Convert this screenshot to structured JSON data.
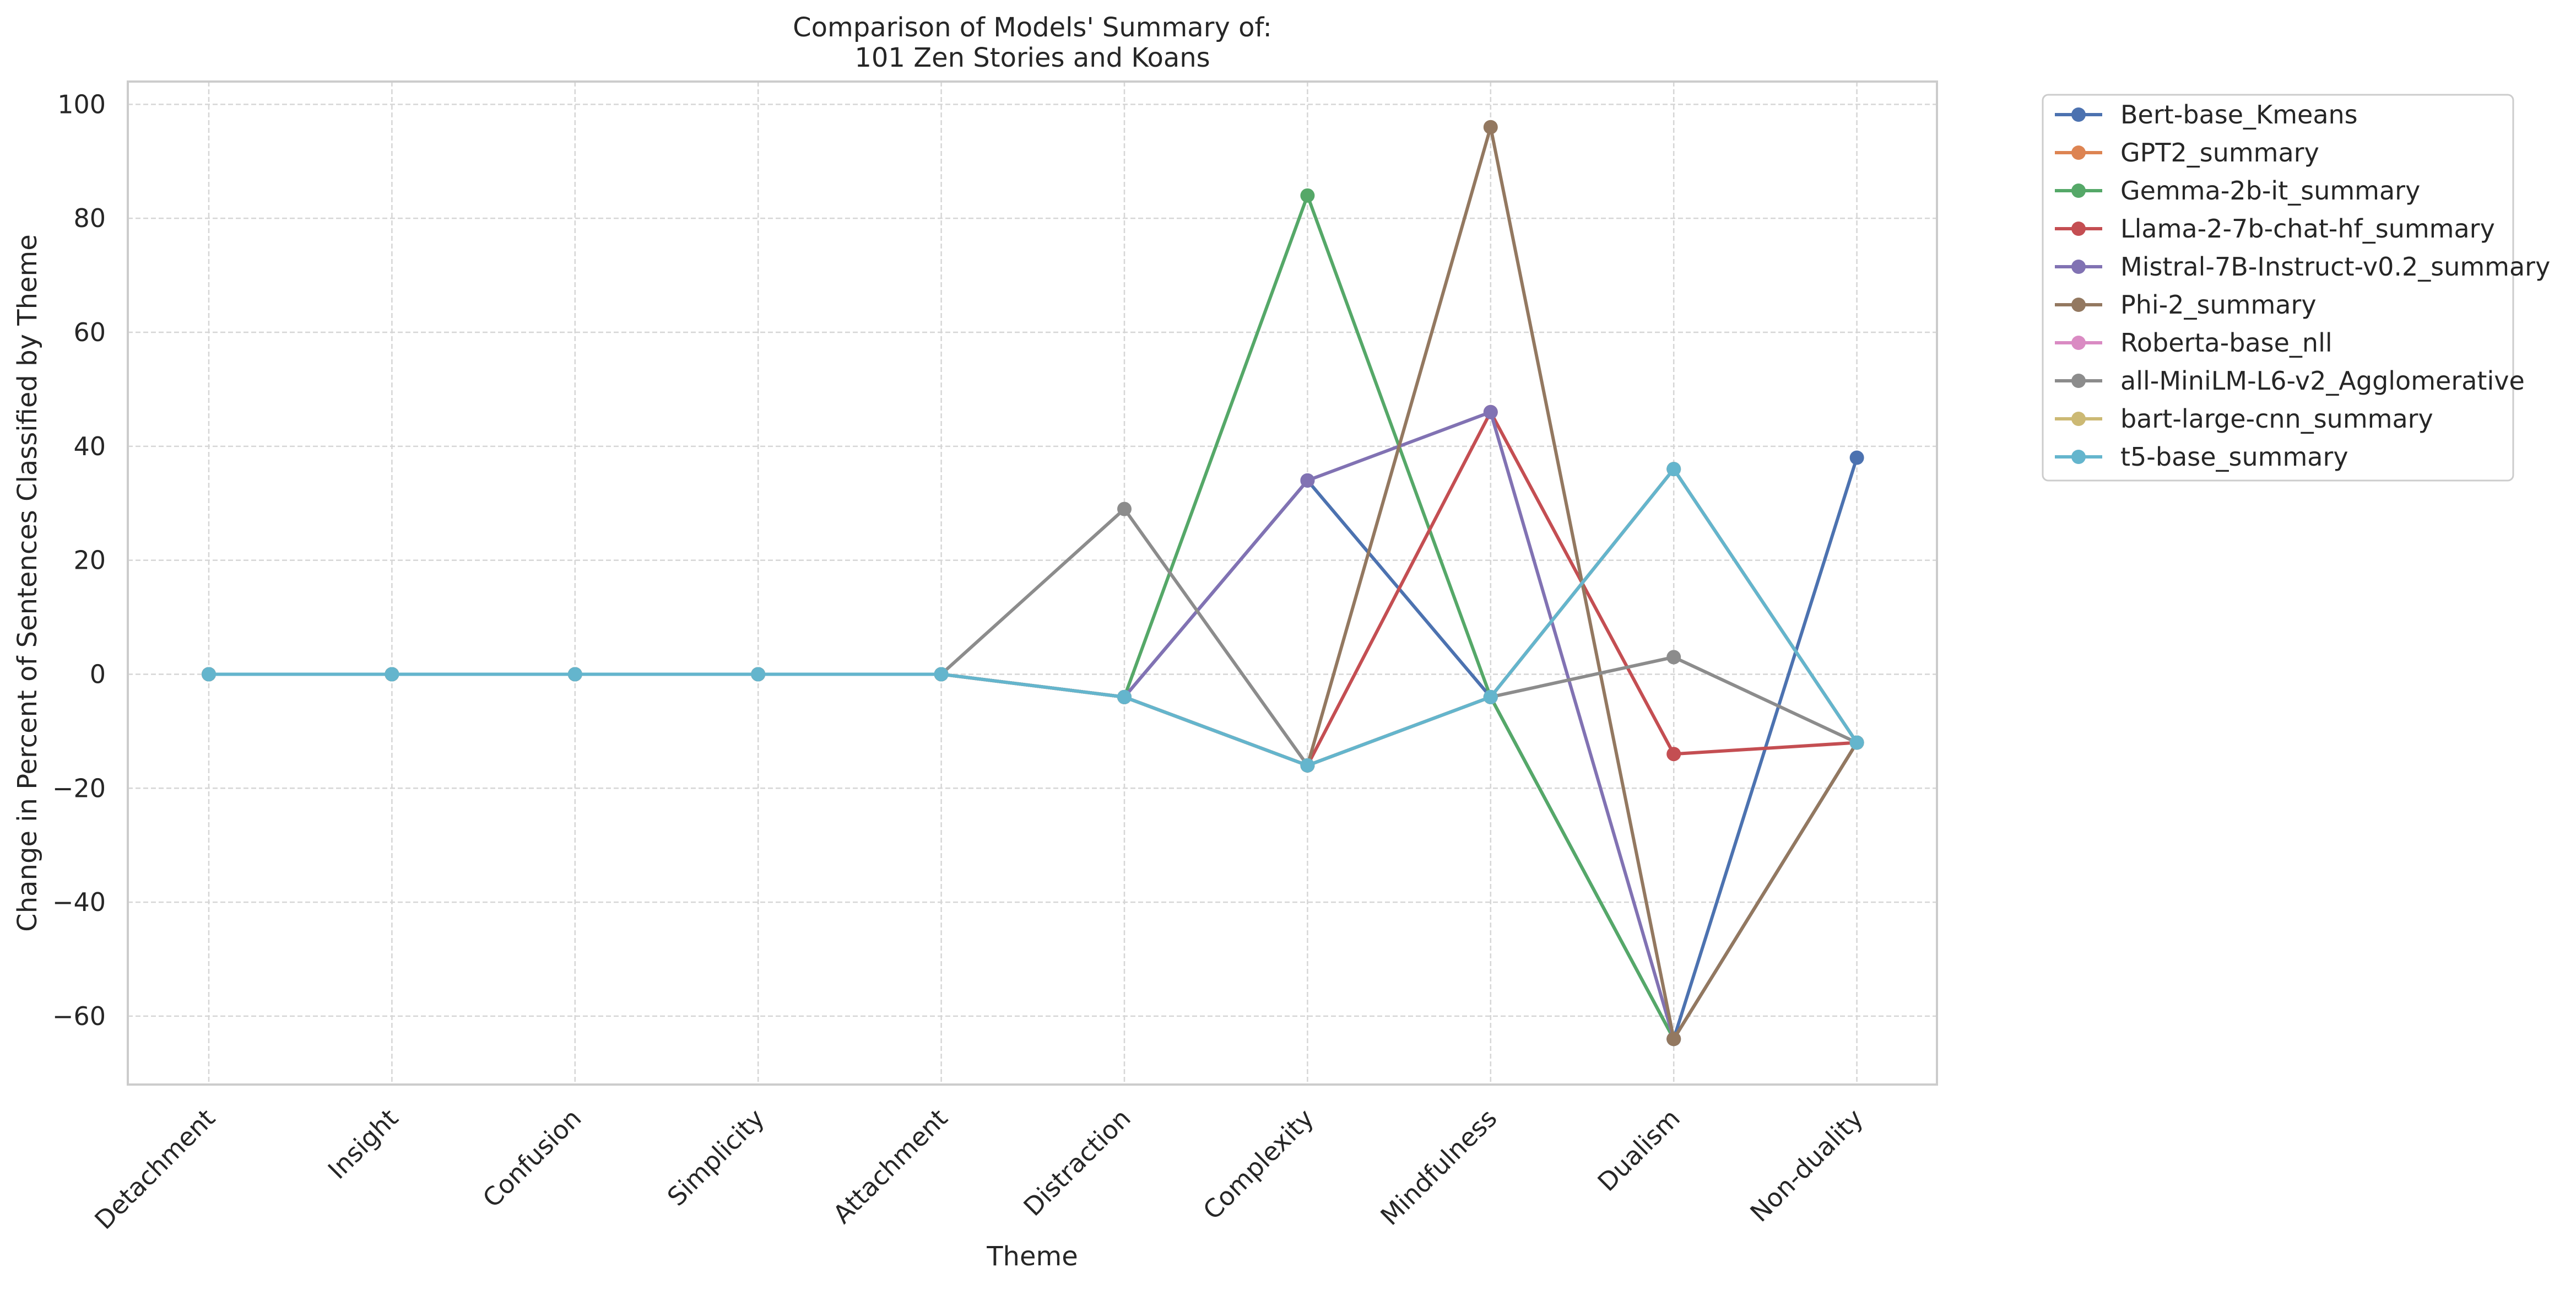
{
  "chart_data": {
    "type": "line",
    "title": "Comparison of Models' Summary of:\n101 Zen Stories and Koans",
    "xlabel": "Theme",
    "ylabel": "Change in Percent of Sentences Classified by Theme",
    "categories": [
      "Detachment",
      "Insight",
      "Confusion",
      "Simplicity",
      "Attachment",
      "Distraction",
      "Complexity",
      "Mindfulness",
      "Dualism",
      "Non-duality"
    ],
    "ylim": [
      -72,
      104
    ],
    "yticks": [
      -60,
      -40,
      -20,
      0,
      20,
      40,
      60,
      80,
      100
    ],
    "ytick_labels": [
      "−60",
      "−40",
      "−20",
      "0",
      "20",
      "40",
      "60",
      "80",
      "100"
    ],
    "grid": true,
    "legend_position": "outside-top-right",
    "series": [
      {
        "name": "Bert-base_Kmeans",
        "color": "#4c72b0",
        "values": [
          0,
          0,
          0,
          0,
          0,
          -4,
          34,
          -4,
          -64,
          38
        ]
      },
      {
        "name": "GPT2_summary",
        "color": "#dd8452",
        "values": [
          0,
          0,
          0,
          0,
          0,
          -4,
          -16,
          -4,
          36,
          -12
        ]
      },
      {
        "name": "Gemma-2b-it_summary",
        "color": "#55a868",
        "values": [
          0,
          0,
          0,
          0,
          0,
          -4,
          84,
          -4,
          -64,
          -12
        ]
      },
      {
        "name": "Llama-2-7b-chat-hf_summary",
        "color": "#c44e52",
        "values": [
          0,
          0,
          0,
          0,
          0,
          -4,
          -16,
          46,
          -14,
          -12
        ]
      },
      {
        "name": "Mistral-7B-Instruct-v0.2_summary",
        "color": "#8172b3",
        "values": [
          0,
          0,
          0,
          0,
          0,
          -4,
          34,
          46,
          -64,
          -12
        ]
      },
      {
        "name": "Phi-2_summary",
        "color": "#937860",
        "values": [
          0,
          0,
          0,
          0,
          0,
          -4,
          -16,
          96,
          -64,
          -12
        ]
      },
      {
        "name": "Roberta-base_nll",
        "color": "#da8bc3",
        "values": [
          0,
          0,
          0,
          0,
          0,
          -4,
          -16,
          -4,
          36,
          -12
        ]
      },
      {
        "name": "all-MiniLM-L6-v2_Agglomerative",
        "color": "#8c8c8c",
        "values": [
          0,
          0,
          0,
          0,
          0,
          29,
          -16,
          -4,
          3,
          -12
        ]
      },
      {
        "name": "bart-large-cnn_summary",
        "color": "#ccb974",
        "values": [
          0,
          0,
          0,
          0,
          0,
          -4,
          -16,
          -4,
          36,
          -12
        ]
      },
      {
        "name": "t5-base_summary",
        "color": "#64b5cd",
        "values": [
          0,
          0,
          0,
          0,
          0,
          -4,
          -16,
          -4,
          36,
          -12
        ]
      }
    ]
  }
}
